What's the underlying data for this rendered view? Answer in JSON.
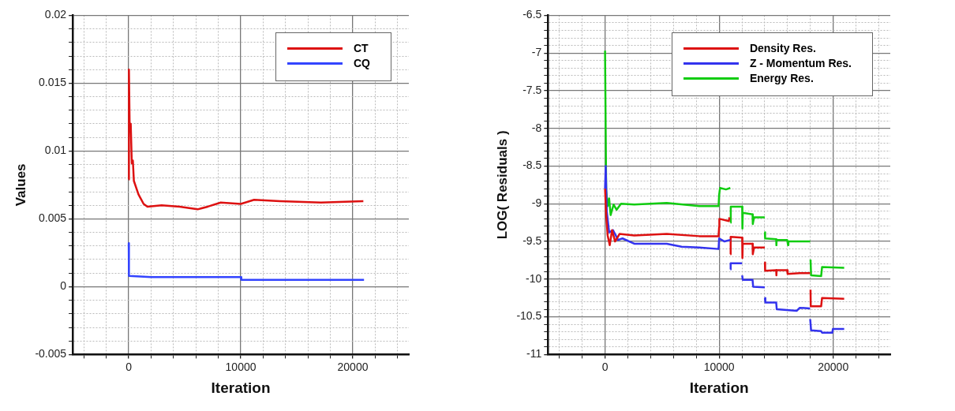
{
  "chart_data": [
    {
      "type": "line",
      "xlabel": "Iteration",
      "ylabel": "Values",
      "xlim": [
        -5000,
        25000
      ],
      "ylim": [
        -0.005,
        0.02
      ],
      "xticks": [
        {
          "value": -4000,
          "label": null
        },
        {
          "value": -2000,
          "label": null
        },
        0,
        {
          "value": 2000,
          "label": null
        },
        {
          "value": 4000,
          "label": null
        },
        {
          "value": 6000,
          "label": null
        },
        {
          "value": 8000,
          "label": null
        },
        10000,
        {
          "value": 12000,
          "label": null
        },
        {
          "value": 14000,
          "label": null
        },
        {
          "value": 16000,
          "label": null
        },
        {
          "value": 18000,
          "label": null
        },
        20000,
        {
          "value": 22000,
          "label": null
        },
        {
          "value": 24000,
          "label": null
        }
      ],
      "yticks": [
        -0.005,
        {
          "value": -0.004,
          "label": null
        },
        {
          "value": -0.003,
          "label": null
        },
        {
          "value": -0.002,
          "label": null
        },
        {
          "value": -0.001,
          "label": null
        },
        0,
        {
          "value": 0.001,
          "label": null
        },
        {
          "value": 0.002,
          "label": null
        },
        {
          "value": 0.003,
          "label": null
        },
        {
          "value": 0.004,
          "label": null
        },
        0.005,
        {
          "value": 0.006,
          "label": null
        },
        {
          "value": 0.007,
          "label": null
        },
        {
          "value": 0.008,
          "label": null
        },
        {
          "value": 0.009,
          "label": null
        },
        0.01,
        {
          "value": 0.011,
          "label": null
        },
        {
          "value": 0.012,
          "label": null
        },
        {
          "value": 0.013,
          "label": null
        },
        {
          "value": 0.014,
          "label": null
        },
        0.015,
        {
          "value": 0.016,
          "label": null
        },
        {
          "value": 0.017,
          "label": null
        },
        {
          "value": 0.018,
          "label": null
        },
        {
          "value": 0.019,
          "label": null
        },
        0.02
      ],
      "grid": true,
      "legend": "top right",
      "series": [
        {
          "name": "CT",
          "color": "#dd1111",
          "x": [
            0,
            20,
            90,
            180,
            275,
            370,
            460,
            870,
            1330,
            1670,
            2940,
            4540,
            6150,
            7060,
            8210,
            10000,
            11190,
            13490,
            17160,
            20940
          ],
          "values": [
            0.0079,
            0.016,
            0.0114,
            0.012,
            0.0091,
            0.0093,
            0.0078,
            0.0068,
            0.0061,
            0.0059,
            0.006,
            0.0059,
            0.0057,
            0.0059,
            0.0062,
            0.0061,
            0.0064,
            0.0063,
            0.0062,
            0.0063
          ]
        },
        {
          "name": "CQ",
          "color": "#3344ff",
          "x": [
            0,
            20,
            2000,
            10000,
            10050,
            13000,
            21000
          ],
          "values": [
            0.0032,
            0.0008,
            0.0007,
            0.0007,
            0.0005,
            0.0005,
            0.0005
          ]
        }
      ]
    },
    {
      "type": "line",
      "xlabel": "Iteration",
      "ylabel": "LOG( Residuals )",
      "xlim": [
        -5000,
        25000
      ],
      "ylim": [
        -11,
        -6.5
      ],
      "xticks": [
        {
          "value": -4000,
          "label": null
        },
        {
          "value": -2000,
          "label": null
        },
        0,
        {
          "value": 2000,
          "label": null
        },
        {
          "value": 4000,
          "label": null
        },
        {
          "value": 6000,
          "label": null
        },
        {
          "value": 8000,
          "label": null
        },
        10000,
        {
          "value": 12000,
          "label": null
        },
        {
          "value": 14000,
          "label": null
        },
        {
          "value": 16000,
          "label": null
        },
        {
          "value": 18000,
          "label": null
        },
        20000,
        {
          "value": 22000,
          "label": null
        },
        {
          "value": 24000,
          "label": null
        }
      ],
      "yticks": [
        -11,
        {
          "value": -10.9,
          "label": null
        },
        {
          "value": -10.8,
          "label": null
        },
        {
          "value": -10.7,
          "label": null
        },
        {
          "value": -10.6,
          "label": null
        },
        -10.5,
        {
          "value": -10.4,
          "label": null
        },
        {
          "value": -10.3,
          "label": null
        },
        {
          "value": -10.2,
          "label": null
        },
        {
          "value": -10.1,
          "label": null
        },
        -10,
        {
          "value": -9.9,
          "label": null
        },
        {
          "value": -9.8,
          "label": null
        },
        {
          "value": -9.7,
          "label": null
        },
        {
          "value": -9.6,
          "label": null
        },
        -9.5,
        {
          "value": -9.4,
          "label": null
        },
        {
          "value": -9.3,
          "label": null
        },
        {
          "value": -9.2,
          "label": null
        },
        {
          "value": -9.1,
          "label": null
        },
        -9,
        {
          "value": -8.9,
          "label": null
        },
        {
          "value": -8.8,
          "label": null
        },
        {
          "value": -8.7,
          "label": null
        },
        {
          "value": -8.6,
          "label": null
        },
        -8.5,
        {
          "value": -8.4,
          "label": null
        },
        {
          "value": -8.3,
          "label": null
        },
        {
          "value": -8.2,
          "label": null
        },
        {
          "value": -8.1,
          "label": null
        },
        -8,
        {
          "value": -7.9,
          "label": null
        },
        {
          "value": -7.8,
          "label": null
        },
        {
          "value": -7.7,
          "label": null
        },
        {
          "value": -7.6,
          "label": null
        },
        -7.5,
        {
          "value": -7.4,
          "label": null
        },
        {
          "value": -7.3,
          "label": null
        },
        {
          "value": -7.2,
          "label": null
        },
        {
          "value": -7.1,
          "label": null
        },
        -7,
        {
          "value": -6.9,
          "label": null
        },
        {
          "value": -6.8,
          "label": null
        },
        {
          "value": -6.7,
          "label": null
        },
        {
          "value": -6.6,
          "label": null
        },
        -6.5
      ],
      "grid": true,
      "legend": "top right",
      "series": [
        {
          "name": "Density Res.",
          "color": "#dd1111",
          "x": [
            0,
            100,
            230,
            410,
            620,
            880,
            1270,
            2560,
            5410,
            8260,
            9950,
            10000,
            10020,
            10850,
            10900
          ],
          "values": [
            -8.8,
            -9.16,
            -9.42,
            -9.55,
            -9.35,
            -9.5,
            -9.4,
            -9.42,
            -9.4,
            -9.43,
            -9.43,
            -9.31,
            -9.2,
            -9.23,
            -9.18
          ]
        },
        {
          "name": "Z - Momentum Res.",
          "color": "#3333ee",
          "x": [
            0,
            60,
            150,
            360,
            700,
            1140,
            1530,
            2560,
            5410,
            6710,
            8260,
            9950,
            10000,
            10470,
            10980
          ],
          "values": [
            -8.8,
            -8.5,
            -9.1,
            -9.38,
            -9.35,
            -9.48,
            -9.46,
            -9.53,
            -9.53,
            -9.57,
            -9.58,
            -9.6,
            -9.46,
            -9.5,
            -9.48
          ]
        },
        {
          "name": "Energy Res.",
          "color": "#11cc11",
          "x": [
            0,
            100,
            230,
            360,
            490,
            750,
            1010,
            1400,
            2560,
            5410,
            8260,
            9950,
            10000,
            10080,
            10600,
            10980
          ],
          "values": [
            -6.97,
            -8.82,
            -9.03,
            -8.93,
            -9.15,
            -9.01,
            -9.08,
            -9,
            -9.01,
            -8.99,
            -9.03,
            -9.03,
            -8.88,
            -8.79,
            -8.81,
            -8.79
          ]
        },
        {
          "color": "#dd1111",
          "x": [
            10980,
            11010,
            12020,
            12040,
            12070,
            12930,
            12950,
            13060,
            14000
          ],
          "values": [
            -9.67,
            -9.44,
            -9.45,
            -9.72,
            -9.53,
            -9.53,
            -9.67,
            -9.58,
            -9.58
          ]
        },
        {
          "color": "#dd1111",
          "x": [
            14010,
            14030,
            15000,
            15020,
            15040,
            15960,
            16000,
            17070,
            17980
          ],
          "values": [
            -9.78,
            -9.89,
            -9.88,
            -9.95,
            -9.88,
            -9.88,
            -9.93,
            -9.92,
            -9.92
          ]
        },
        {
          "color": "#dd1111",
          "x": [
            18010,
            18030,
            18940,
            19020,
            20960
          ],
          "values": [
            -10.14,
            -10.36,
            -10.36,
            -10.25,
            -10.26
          ]
        },
        {
          "color": "#3333ee",
          "x": [
            10990,
            11010,
            12010
          ],
          "values": [
            -9.87,
            -9.79,
            -9.79
          ]
        },
        {
          "color": "#3333ee",
          "x": [
            12020,
            12070,
            12930,
            12980,
            14000
          ],
          "values": [
            -9.95,
            -10.01,
            -10.01,
            -10.1,
            -10.11
          ]
        },
        {
          "color": "#3333ee",
          "x": [
            14010,
            14050,
            15000,
            15050,
            16810,
            17070,
            17970
          ],
          "values": [
            -10.25,
            -10.31,
            -10.31,
            -10.4,
            -10.42,
            -10.38,
            -10.39
          ]
        },
        {
          "color": "#3333ee",
          "x": [
            17980,
            18060,
            18940,
            19020,
            19920,
            19970,
            20960
          ],
          "values": [
            -10.53,
            -10.68,
            -10.69,
            -10.71,
            -10.71,
            -10.66,
            -10.66
          ]
        },
        {
          "color": "#11cc11",
          "x": [
            11000,
            11020,
            12020,
            12040,
            12070,
            12930,
            12950,
            13060,
            14000
          ],
          "values": [
            -9.25,
            -9.04,
            -9.04,
            -9.33,
            -9.12,
            -9.14,
            -9.27,
            -9.18,
            -9.18
          ]
        },
        {
          "color": "#11cc11",
          "x": [
            14010,
            14030,
            15000,
            15020,
            15040,
            15960,
            16040,
            16070,
            17980
          ],
          "values": [
            -9.38,
            -9.46,
            -9.47,
            -9.55,
            -9.48,
            -9.48,
            -9.55,
            -9.5,
            -9.5
          ]
        },
        {
          "color": "#11cc11",
          "x": [
            18010,
            18060,
            18940,
            19020,
            20960
          ],
          "values": [
            -9.74,
            -9.95,
            -9.96,
            -9.84,
            -9.85
          ]
        }
      ]
    }
  ]
}
